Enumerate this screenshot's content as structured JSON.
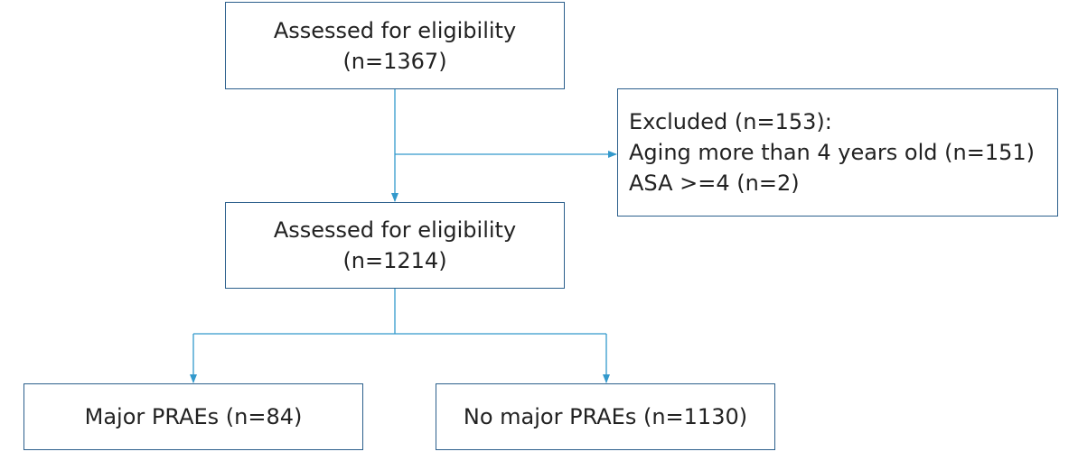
{
  "colors": {
    "box_border": "#2b5f8c",
    "connector": "#3399cc",
    "text": "#222222"
  },
  "nodes": {
    "assessed_1": {
      "line1": "Assessed for eligibility",
      "line2": "(n=1367)"
    },
    "excluded": {
      "line1": "Excluded (n=153):",
      "line2": "Aging more than 4 years old (n=151)",
      "line3": "ASA >=4 (n=2)"
    },
    "assessed_2": {
      "line1": "Assessed for eligibility",
      "line2": "(n=1214)"
    },
    "major": {
      "label": "Major PRAEs (n=84)"
    },
    "no_major": {
      "label": "No major PRAEs (n=1130)"
    }
  }
}
